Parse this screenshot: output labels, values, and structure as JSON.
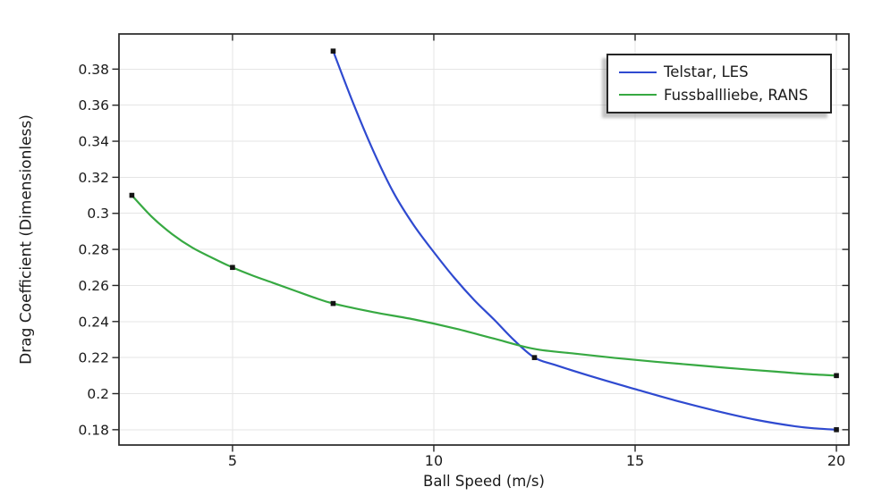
{
  "chart_data": {
    "type": "line",
    "title": "",
    "xlabel": "Ball Speed (m/s)",
    "ylabel": "Drag Coefficient (Dimensionless)",
    "xlim": [
      2.18,
      20.31
    ],
    "ylim": [
      0.1715,
      0.3995
    ],
    "grid": true,
    "legend_position": "top-right",
    "colors": {
      "axis": "#262626",
      "grid": "#e5e5e5",
      "text": "#1a1a1a",
      "background": "#ffffff",
      "marker": "#141414"
    },
    "xticks": [
      {
        "value": 5,
        "label": "5"
      },
      {
        "value": 10,
        "label": "10"
      },
      {
        "value": 15,
        "label": "15"
      },
      {
        "value": 20,
        "label": "20"
      }
    ],
    "yticks": [
      {
        "value": 0.38,
        "label": "0.38"
      },
      {
        "value": 0.36,
        "label": "0.36"
      },
      {
        "value": 0.34,
        "label": "0.34"
      },
      {
        "value": 0.32,
        "label": "0.32"
      },
      {
        "value": 0.3,
        "label": "0.3"
      },
      {
        "value": 0.28,
        "label": "0.28"
      },
      {
        "value": 0.26,
        "label": "0.26"
      },
      {
        "value": 0.24,
        "label": "0.24"
      },
      {
        "value": 0.22,
        "label": "0.22"
      },
      {
        "value": 0.2,
        "label": "0.2"
      },
      {
        "value": 0.18,
        "label": "0.18"
      }
    ],
    "series": [
      {
        "name": "Telstar, LES",
        "color": "#2f4ad0",
        "line_width": 2.2,
        "marker": "square",
        "marker_color": "#141414",
        "points": [
          [
            7.5,
            0.39
          ],
          [
            12.5,
            0.22
          ],
          [
            20,
            0.18
          ]
        ],
        "curve": [
          [
            7.5,
            0.39
          ],
          [
            8,
            0.361
          ],
          [
            8.5,
            0.3345
          ],
          [
            9,
            0.3115
          ],
          [
            9.5,
            0.2935
          ],
          [
            10,
            0.2785
          ],
          [
            10.5,
            0.2645
          ],
          [
            11,
            0.252
          ],
          [
            11.5,
            0.241
          ],
          [
            12,
            0.2295
          ],
          [
            12.5,
            0.22
          ],
          [
            13,
            0.216
          ],
          [
            14,
            0.209
          ],
          [
            15,
            0.2025
          ],
          [
            16,
            0.1962
          ],
          [
            17,
            0.1905
          ],
          [
            18,
            0.1855
          ],
          [
            19,
            0.1818
          ],
          [
            19.5,
            0.1807
          ],
          [
            20,
            0.18
          ]
        ]
      },
      {
        "name": "Fussballliebe, RANS",
        "color": "#37a942",
        "line_width": 2.2,
        "marker": "square",
        "marker_color": "#141414",
        "points": [
          [
            2.5,
            0.31
          ],
          [
            5,
            0.27
          ],
          [
            7.5,
            0.25
          ],
          [
            20,
            0.21
          ]
        ],
        "curve": [
          [
            2.5,
            0.31
          ],
          [
            3,
            0.298
          ],
          [
            3.5,
            0.2885
          ],
          [
            4,
            0.281
          ],
          [
            4.5,
            0.2753
          ],
          [
            5,
            0.27
          ],
          [
            5.5,
            0.2655
          ],
          [
            6,
            0.2615
          ],
          [
            6.5,
            0.2575
          ],
          [
            7,
            0.2535
          ],
          [
            7.5,
            0.25
          ],
          [
            8.5,
            0.2452
          ],
          [
            9.5,
            0.2412
          ],
          [
            10.5,
            0.2363
          ],
          [
            11.5,
            0.2305
          ],
          [
            12.5,
            0.2248
          ],
          [
            13.5,
            0.2222
          ],
          [
            14.5,
            0.2198
          ],
          [
            15.5,
            0.2177
          ],
          [
            16.5,
            0.2158
          ],
          [
            17.5,
            0.2139
          ],
          [
            18.5,
            0.2122
          ],
          [
            19.25,
            0.2109
          ],
          [
            20,
            0.21
          ]
        ]
      }
    ]
  }
}
